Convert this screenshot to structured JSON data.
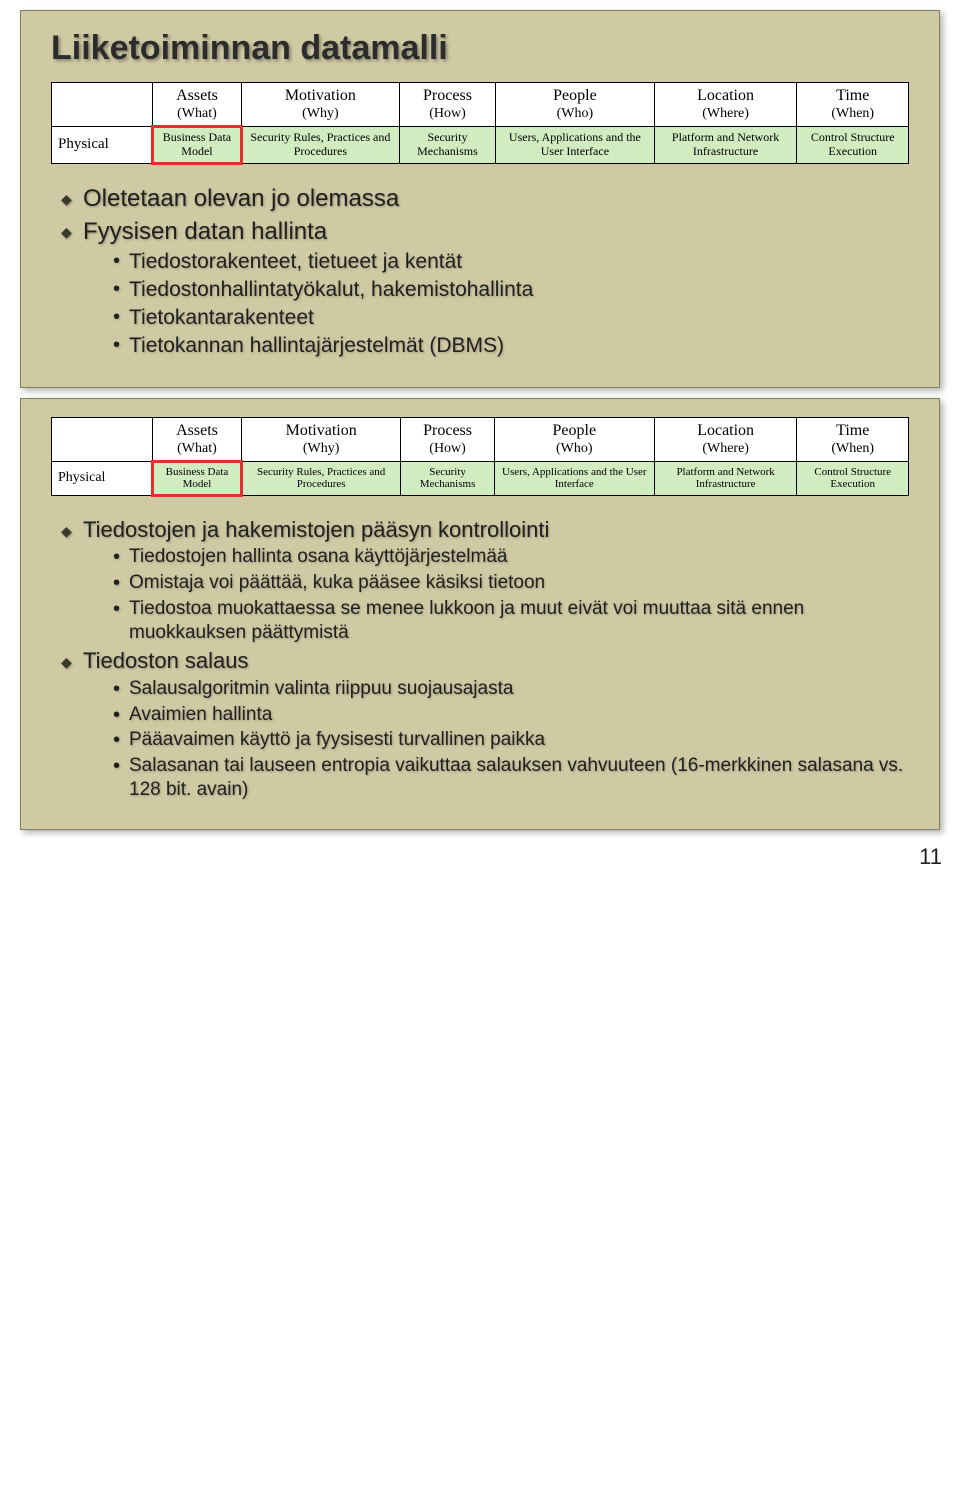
{
  "slide1": {
    "title": "Liiketoiminnan datamalli",
    "table": {
      "headers": [
        {
          "main": "Assets",
          "sub": "(What)"
        },
        {
          "main": "Motivation",
          "sub": "(Why)"
        },
        {
          "main": "Process",
          "sub": "(How)"
        },
        {
          "main": "People",
          "sub": "(Who)"
        },
        {
          "main": "Location",
          "sub": "(Where)"
        },
        {
          "main": "Time",
          "sub": "(When)"
        }
      ],
      "row_label": "Physical",
      "cells": [
        "Business Data Model",
        "Security Rules, Practices and Procedures",
        "Security Mechanisms",
        "Users, Applications and the User Interface",
        "Platform and Network Infrastructure",
        "Control Structure Execution"
      ],
      "highlight_index": 0
    },
    "bullets": [
      {
        "text": "Oletetaan olevan jo olemassa",
        "sub": []
      },
      {
        "text": "Fyysisen datan hallinta",
        "sub": [
          "Tiedostorakenteet, tietueet ja kentät",
          "Tiedostonhallintatyökalut, hakemistohallinta",
          "Tietokantarakenteet",
          "Tietokannan hallintajärjestelmät (DBMS)"
        ]
      }
    ]
  },
  "slide2": {
    "table": {
      "headers": [
        {
          "main": "Assets",
          "sub": "(What)"
        },
        {
          "main": "Motivation",
          "sub": "(Why)"
        },
        {
          "main": "Process",
          "sub": "(How)"
        },
        {
          "main": "People",
          "sub": "(Who)"
        },
        {
          "main": "Location",
          "sub": "(Where)"
        },
        {
          "main": "Time",
          "sub": "(When)"
        }
      ],
      "row_label": "Physical",
      "cells": [
        "Business Data Model",
        "Security Rules, Practices and Procedures",
        "Security Mechanisms",
        "Users, Applications and the User Interface",
        "Platform and Network Infrastructure",
        "Control Structure Execution"
      ],
      "highlight_index": 0
    },
    "bullets": [
      {
        "text": "Tiedostojen ja hakemistojen pääsyn kontrollointi",
        "sub": [
          "Tiedostojen hallinta osana käyttöjärjestelmää",
          "Omistaja voi päättää, kuka pääsee käsiksi tietoon",
          "Tiedostoa muokattaessa se menee lukkoon ja muut eivät voi muuttaa sitä ennen muokkauksen päättymistä"
        ]
      },
      {
        "text": "Tiedoston salaus",
        "sub": [
          "Salausalgoritmin valinta riippuu suojausajasta",
          "Avaimien hallinta",
          "Pääavaimen käyttö ja fyysisesti turvallinen paikka",
          "Salasanan tai lauseen entropia vaikuttaa salauksen vahvuuteen (16-merkkinen salasana vs. 128 bit. avain)"
        ]
      }
    ]
  },
  "page_number": "11"
}
